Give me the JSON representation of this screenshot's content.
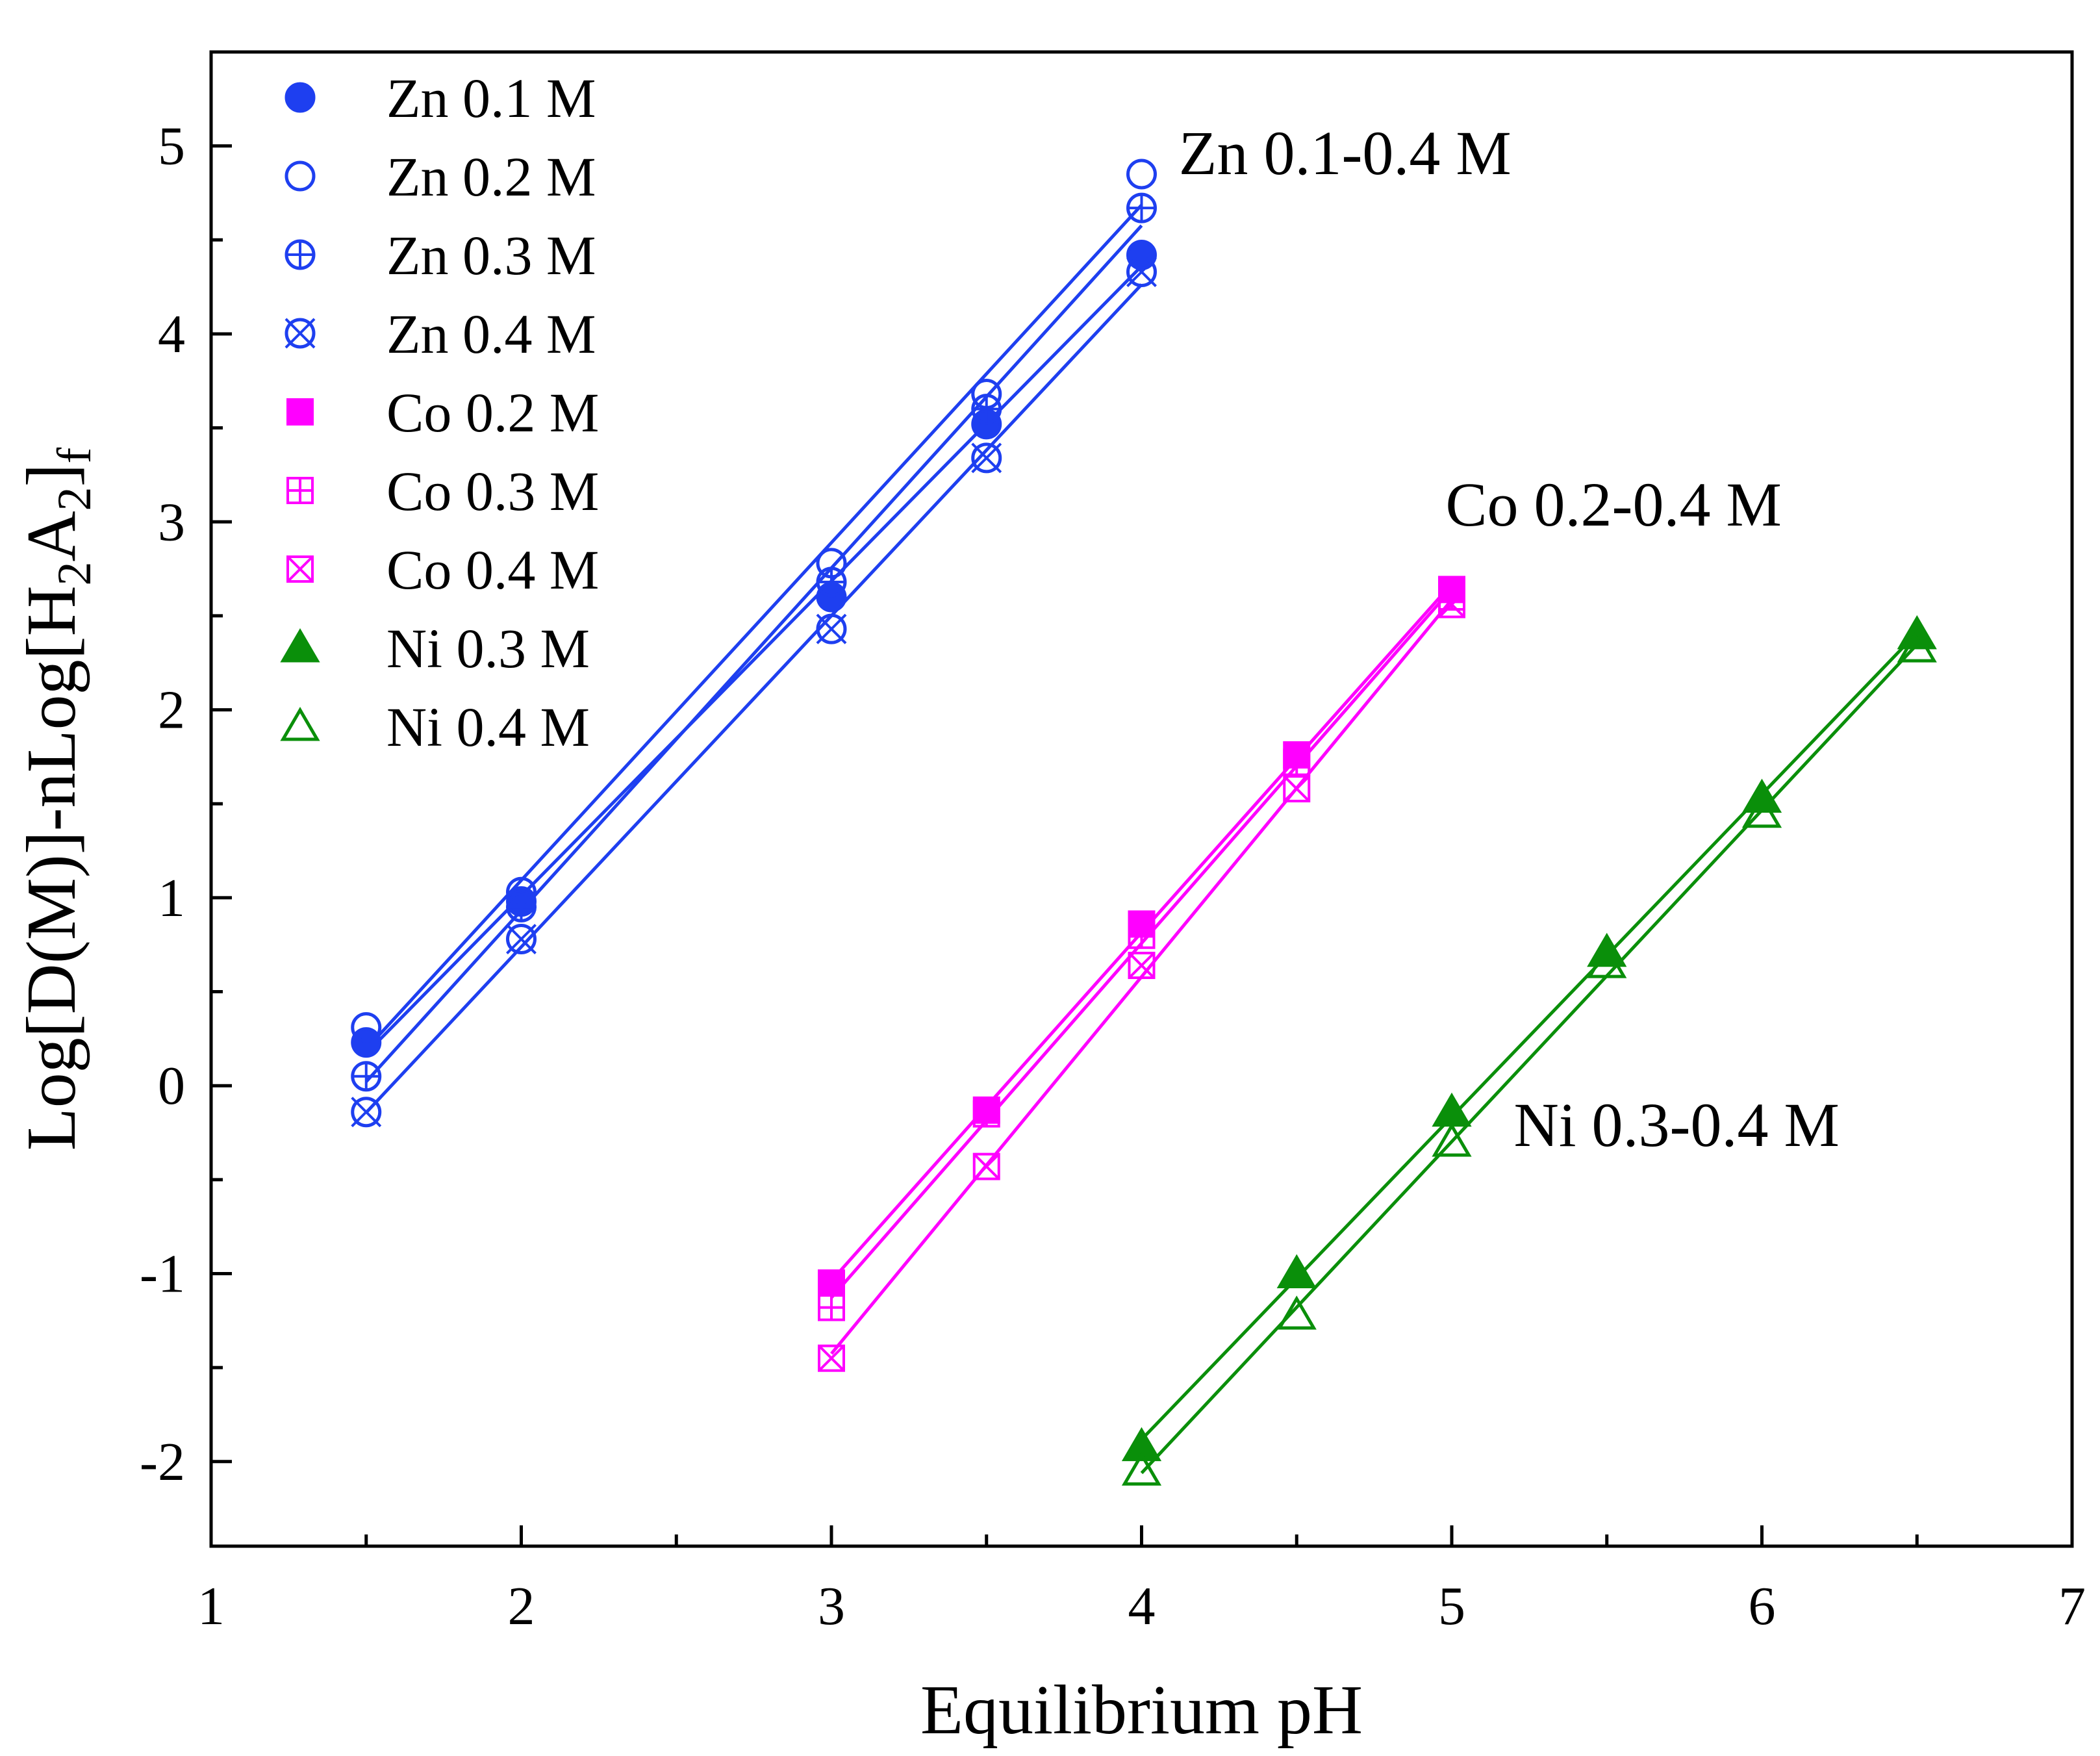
{
  "chart_data": {
    "type": "scatter",
    "xlabel": "Equilibrium pH",
    "ylabel": {
      "main": "Log[D(M)]-nLog[H",
      "sub1": "2",
      "mid": "A",
      "sub2": "2",
      "end": "]",
      "sub3": "f"
    },
    "xlim": [
      1,
      7
    ],
    "ylim": [
      -2.45,
      5.5
    ],
    "xticks": [
      "1",
      "2",
      "3",
      "4",
      "5",
      "6",
      "7"
    ],
    "xtick_values": [
      1,
      2,
      3,
      4,
      5,
      6,
      7
    ],
    "yticks": [
      "-2",
      "-1",
      "0",
      "1",
      "2",
      "3",
      "4",
      "5"
    ],
    "ytick_values": [
      -2,
      -1,
      0,
      1,
      2,
      3,
      4,
      5
    ],
    "grid": false,
    "legend_position": "top-left",
    "annotations": [
      {
        "text": "Zn 0.1-0.4 M",
        "x": 4.12,
        "y": 4.85
      },
      {
        "text": "Co 0.2-0.4 M",
        "x": 4.98,
        "y": 2.98
      },
      {
        "text": "Ni 0.3-0.4 M",
        "x": 5.2,
        "y": -0.32
      }
    ],
    "series": [
      {
        "name": "Zn 0.1 M",
        "color": "#1e3ff0",
        "marker": "circle-filled",
        "x": [
          1.5,
          2.0,
          3.0,
          3.5,
          4.0
        ],
        "y": [
          0.23,
          0.98,
          2.6,
          3.52,
          4.42
        ]
      },
      {
        "name": "Zn 0.2 M",
        "color": "#1e3ff0",
        "marker": "circle-open",
        "x": [
          1.5,
          2.0,
          3.0,
          3.5,
          4.0
        ],
        "y": [
          0.31,
          1.03,
          2.78,
          3.68,
          4.85
        ]
      },
      {
        "name": "Zn 0.3 M",
        "color": "#1e3ff0",
        "marker": "circle-plus",
        "x": [
          1.5,
          2.0,
          3.0,
          3.5,
          4.0
        ],
        "y": [
          0.05,
          0.95,
          2.68,
          3.6,
          4.67
        ]
      },
      {
        "name": "Zn 0.4 M",
        "color": "#1e3ff0",
        "marker": "circle-x",
        "x": [
          1.5,
          2.0,
          3.0,
          3.5,
          4.0
        ],
        "y": [
          -0.14,
          0.78,
          2.43,
          3.34,
          4.33
        ]
      },
      {
        "name": "Co 0.2 M",
        "color": "#ff00ff",
        "marker": "square-filled",
        "x": [
          3.0,
          3.5,
          4.0,
          4.5,
          5.0
        ],
        "y": [
          -1.05,
          -0.13,
          0.86,
          1.76,
          2.64
        ]
      },
      {
        "name": "Co 0.3 M",
        "color": "#ff00ff",
        "marker": "square-plus",
        "x": [
          3.0,
          3.5,
          4.0,
          4.5,
          5.0
        ],
        "y": [
          -1.18,
          -0.15,
          0.8,
          1.72,
          2.6
        ]
      },
      {
        "name": "Co 0.4 M",
        "color": "#ff00ff",
        "marker": "square-x",
        "x": [
          3.0,
          3.5,
          4.0,
          4.5,
          5.0
        ],
        "y": [
          -1.45,
          -0.43,
          0.64,
          1.58,
          2.56
        ]
      },
      {
        "name": "Ni 0.3 M",
        "color": "#0a8f0a",
        "marker": "triangle-filled",
        "x": [
          4.0,
          4.5,
          5.0,
          5.5,
          6.0,
          6.5
        ],
        "y": [
          -1.92,
          -1.0,
          -0.14,
          0.71,
          1.53,
          2.4
        ]
      },
      {
        "name": "Ni 0.4 M",
        "color": "#0a8f0a",
        "marker": "triangle-open",
        "x": [
          4.0,
          4.5,
          5.0,
          5.5,
          6.0,
          6.5
        ],
        "y": [
          -2.05,
          -1.22,
          -0.3,
          0.65,
          1.45,
          2.33
        ]
      }
    ]
  }
}
